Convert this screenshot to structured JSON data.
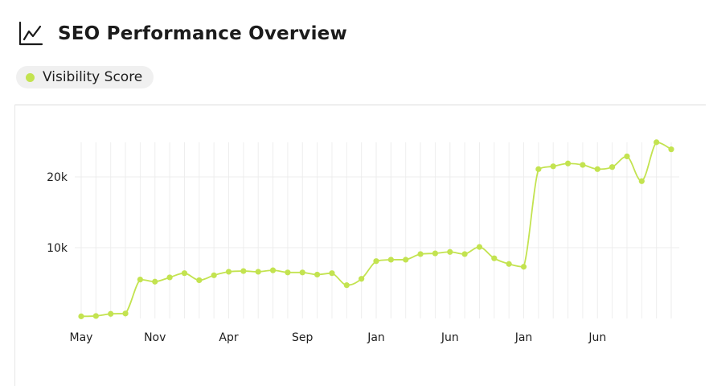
{
  "header": {
    "title": "SEO Performance Overview",
    "icon": "line-chart-icon"
  },
  "legend": {
    "label": "Visibility Score",
    "color": "#c3e350"
  },
  "chart_data": {
    "type": "line",
    "title": "SEO Performance Overview",
    "xlabel": "",
    "ylabel": "",
    "grid": true,
    "legend_placement": "top-left",
    "ylim": [
      0,
      25000
    ],
    "y_ticks": [
      {
        "value": 10000,
        "label": "10k"
      },
      {
        "value": 20000,
        "label": "20k"
      }
    ],
    "x_tick_labels": [
      "May",
      "Nov",
      "Apr",
      "Sep",
      "Jan",
      "Jun",
      "Jan",
      "Jun"
    ],
    "x_tick_positions": [
      0,
      5,
      10,
      15,
      20,
      25,
      30,
      35
    ],
    "series": [
      {
        "name": "Visibility Score",
        "color": "#c3e350",
        "x": [
          0,
          1,
          2,
          3,
          4,
          5,
          6,
          7,
          8,
          9,
          10,
          11,
          12,
          13,
          14,
          15,
          16,
          17,
          18,
          19,
          20,
          21,
          22,
          23,
          24,
          25,
          26,
          27,
          28,
          29,
          30,
          31,
          32,
          33,
          34,
          35,
          36,
          37,
          38,
          39,
          40
        ],
        "values": [
          300,
          350,
          650,
          700,
          5500,
          5200,
          5800,
          6400,
          5400,
          6100,
          6600,
          6700,
          6600,
          6800,
          6500,
          6500,
          6200,
          6400,
          4700,
          5600,
          8100,
          8300,
          8300,
          9100,
          9200,
          9400,
          9100,
          10100,
          8500,
          7700,
          7300,
          21100,
          21500,
          21900,
          21700,
          21100,
          21400,
          22900,
          19400,
          24900,
          23900
        ]
      }
    ]
  }
}
